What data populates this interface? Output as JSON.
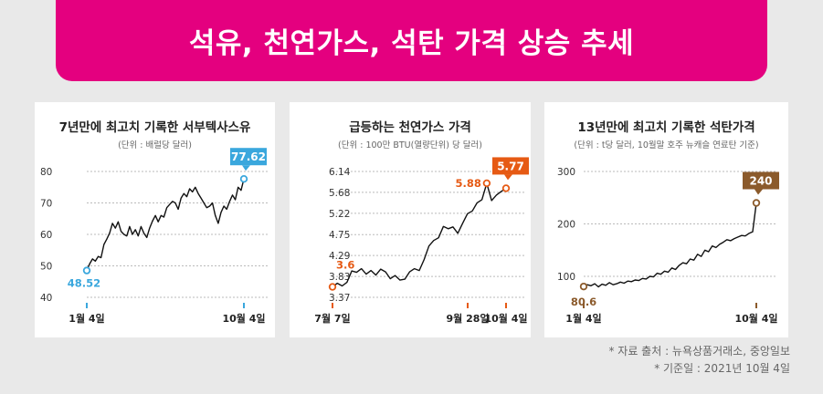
{
  "header": {
    "title": "석유, 천연가스, 석탄 가격 상승 추세"
  },
  "notes": {
    "source": "* 자료 출처 : 뉴욕상품거래소, 중앙일보",
    "date": "* 기준일 : 2021년 10월 4일"
  },
  "chart_data": [
    {
      "type": "line",
      "title": "7년만에 최고치 기록한 서부텍사스유",
      "subtitle": "(단위 : 배럴당 달러)",
      "color": "#111111",
      "accent": "#3aa7dd",
      "y_ticks": [
        40,
        50,
        60,
        70,
        80
      ],
      "ylim": [
        40,
        80
      ],
      "x_ticks": [
        "1월 4일",
        "10월 4일"
      ],
      "start": {
        "x": "1월 4일",
        "y": 48.52,
        "label": "48.52"
      },
      "end": {
        "x": "10월 4일",
        "y": 77.62,
        "label": "77.62"
      },
      "series": [
        {
          "values": [
            48.52,
            50.6,
            52.2,
            51.5,
            53.0,
            52.6,
            56.8,
            58.5,
            60.4,
            63.5,
            62.0,
            64.0,
            61.0,
            60.0,
            59.5,
            62.5,
            60.0,
            61.5,
            59.5,
            62.5,
            60.4,
            59.0,
            62.0,
            64.2,
            66.0,
            64.0,
            66.0,
            65.5,
            68.5,
            69.5,
            70.5,
            70.0,
            68.0,
            71.5,
            73.0,
            72.0,
            74.5,
            73.5,
            75.0,
            73.0,
            71.5,
            70.0,
            68.5,
            69.0,
            70.0,
            66.0,
            63.5,
            67.0,
            69.0,
            68.0,
            70.5,
            72.5,
            71.0,
            75.0,
            74.0,
            77.62
          ]
        }
      ]
    },
    {
      "type": "line",
      "title": "급등하는 천연가스 가격",
      "subtitle": "(단위 : 100만 BTU(열량단위) 당 달러)",
      "color": "#111111",
      "accent": "#e65a14",
      "y_ticks": [
        3.37,
        3.83,
        4.29,
        4.75,
        5.22,
        5.68,
        6.14
      ],
      "ylim": [
        3.37,
        6.14
      ],
      "x_ticks": [
        "7월 7일",
        "9월 28일",
        "10월 4일"
      ],
      "start": {
        "x": "7월 7일",
        "y": 3.6,
        "label": "3.6"
      },
      "peak": {
        "x": "9월 28일",
        "y": 5.88,
        "label": "5.88"
      },
      "end": {
        "x": "10월 4일",
        "y": 5.77,
        "label": "5.77"
      },
      "series": [
        {
          "values": [
            3.6,
            3.68,
            3.62,
            3.7,
            3.95,
            3.92,
            4.0,
            3.88,
            3.96,
            3.86,
            3.99,
            3.93,
            3.78,
            3.85,
            3.75,
            3.77,
            3.93,
            4.0,
            3.96,
            4.2,
            4.5,
            4.62,
            4.68,
            4.93,
            4.88,
            4.92,
            4.78,
            5.0,
            5.21,
            5.27,
            5.45,
            5.52,
            5.88,
            5.5,
            5.62,
            5.7,
            5.77
          ]
        }
      ]
    },
    {
      "type": "line",
      "title": "13년만에 최고치 기록한 석탄가격",
      "subtitle": "(단위 : t당 달러, 10월말 호주 뉴캐슬 연료탄 기준)",
      "color": "#111111",
      "accent": "#8b5a2b",
      "y_ticks": [
        100,
        200,
        300
      ],
      "ylim": [
        60,
        300
      ],
      "x_ticks": [
        "1월 4일",
        "10월 4일"
      ],
      "start": {
        "x": "1월 4일",
        "y": 80.6,
        "label": "80.6"
      },
      "end": {
        "x": "10월 4일",
        "y": 240,
        "label": "240"
      },
      "series": [
        {
          "values": [
            80.6,
            84,
            82,
            86,
            80,
            85,
            83,
            88,
            84,
            86,
            89,
            87,
            91,
            90,
            93,
            92,
            96,
            95,
            100,
            99,
            106,
            104,
            110,
            108,
            116,
            113,
            121,
            126,
            124,
            133,
            131,
            142,
            138,
            150,
            147,
            158,
            155,
            161,
            165,
            170,
            168,
            172,
            175,
            178,
            177,
            182,
            185,
            240
          ]
        }
      ]
    }
  ]
}
